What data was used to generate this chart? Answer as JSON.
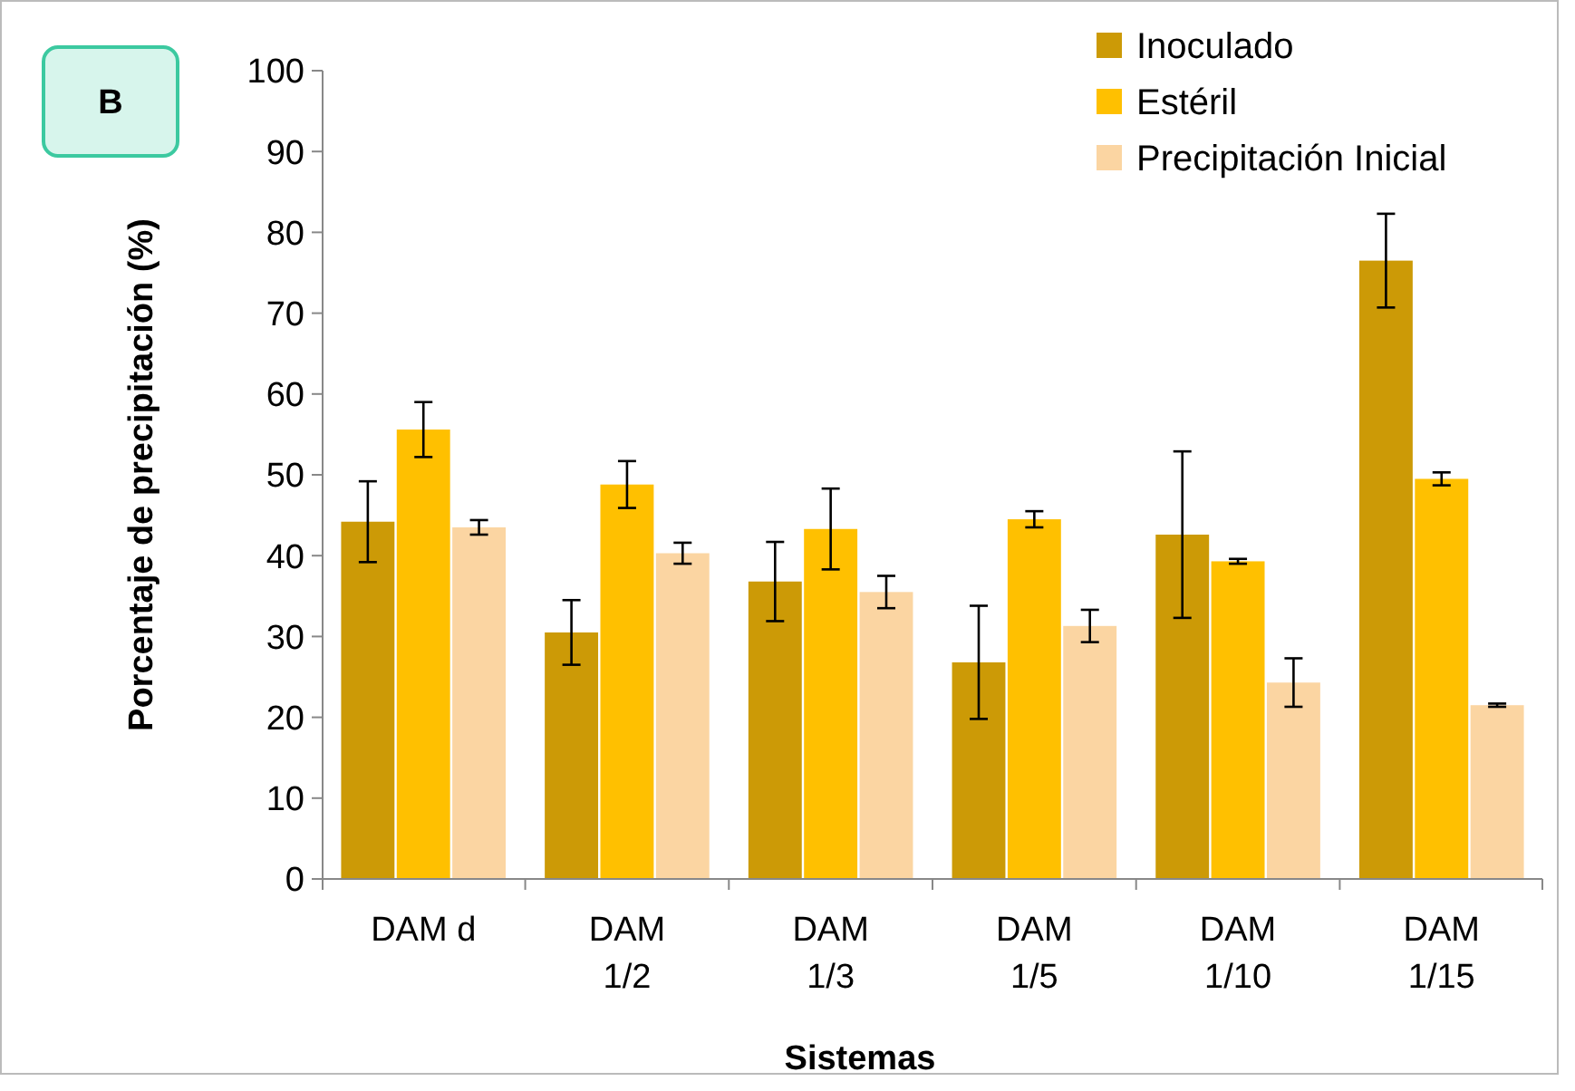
{
  "chart_data": {
    "type": "bar",
    "ylabel": "Porcentaje de precipitación (%)",
    "xlabel": "Sistemas",
    "annotations": [
      "B"
    ],
    "categories": [
      "DAM d",
      "DAM 1/2",
      "DAM 1/3",
      "DAM 1/5",
      "DAM 1/10",
      "DAM 1/15"
    ],
    "series": [
      {
        "name": "Inoculado",
        "color": "#cc9a06",
        "values": [
          44.2,
          30.5,
          36.8,
          26.8,
          42.6,
          76.5
        ],
        "errors": [
          5,
          4,
          4.9,
          7,
          10.3,
          5.8
        ]
      },
      {
        "name": "Estéril",
        "color": "#ffc000",
        "values": [
          55.6,
          48.8,
          43.3,
          44.5,
          39.3,
          49.5
        ],
        "errors": [
          3.4,
          2.9,
          5,
          1,
          0.3,
          0.8
        ]
      },
      {
        "name": "Precipitación Inicial",
        "color": "#fbd5a2",
        "values": [
          43.5,
          40.3,
          35.5,
          31.3,
          24.3,
          21.5
        ],
        "errors": [
          0.9,
          1.3,
          2,
          2,
          3,
          0.2
        ]
      }
    ],
    "ylim": [
      0,
      100
    ],
    "yticks": [
      0,
      10,
      20,
      30,
      40,
      50,
      60,
      70,
      80,
      90,
      100
    ],
    "grid": false,
    "legend": "top right"
  }
}
